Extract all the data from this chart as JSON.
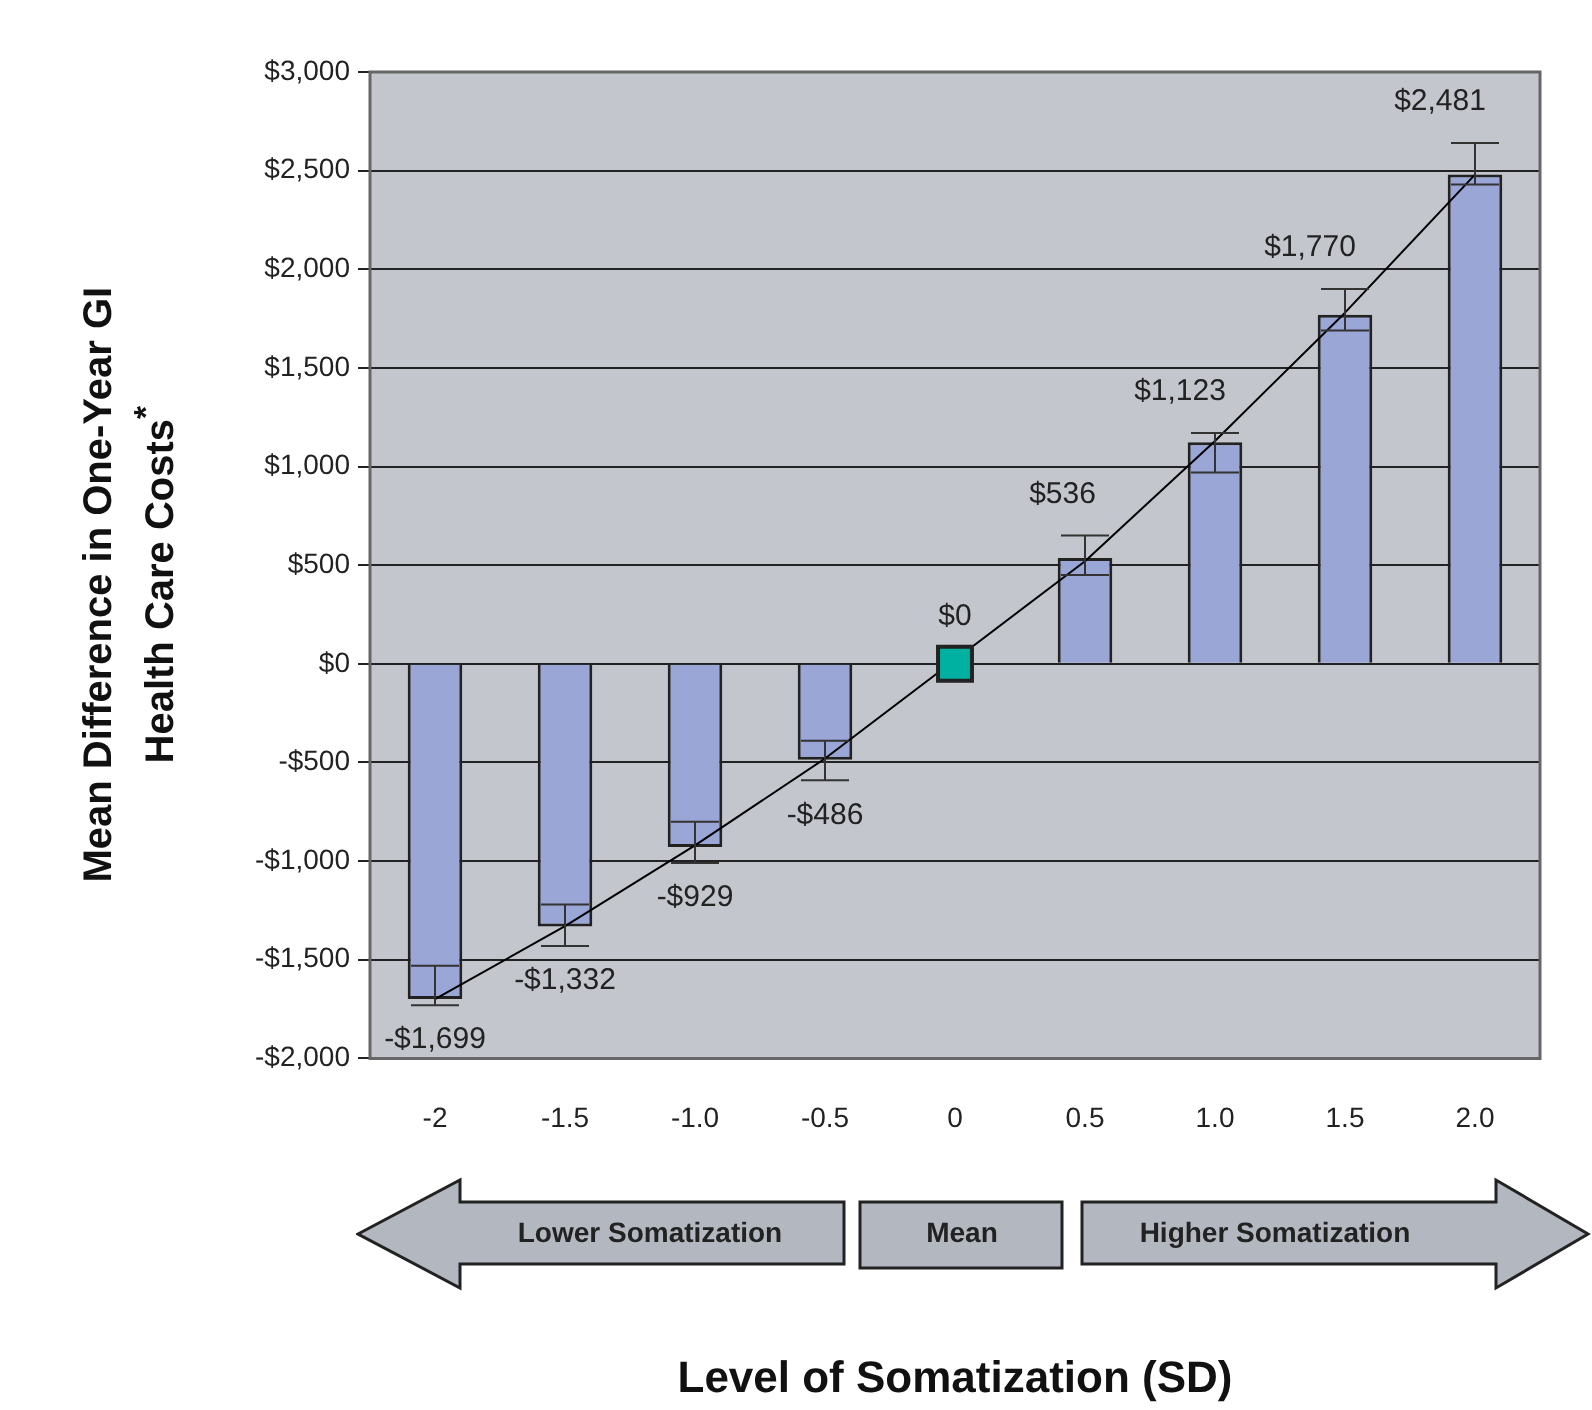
{
  "chart_data": {
    "type": "bar",
    "xlabel": "Level of Somatization (SD)",
    "ylabel": "Mean Difference in One-Year GI Health Care Costs$^{*}$",
    "categories": [
      "-2",
      "-1.5",
      "-1.0",
      "-0.5",
      "0",
      "0.5",
      "1.0",
      "1.5",
      "2.0"
    ],
    "series": [
      {
        "color": "#9aa6d6",
        "values": [
          -1699,
          -1332,
          -929,
          -486,
          null,
          536,
          1123,
          1770,
          2481
        ],
        "value_labels": [
          "-$1,699",
          "-$1,332",
          "-$929",
          "-$486",
          null,
          "$536",
          "$1,123",
          "$1,770",
          "$2,481"
        ],
        "errors": [
          [
            -1730,
            -1530
          ],
          [
            -1430,
            -1220
          ],
          [
            -1010,
            -800
          ],
          [
            -590,
            -390
          ],
          null,
          [
            450,
            650
          ],
          [
            970,
            1170
          ],
          [
            1690,
            1900
          ],
          [
            2430,
            2640
          ]
        ]
      },
      {
        "type": "scatter",
        "color": "#00b0a0",
        "marker": "square",
        "x": [
          "0"
        ],
        "values": [
          0
        ],
        "value_labels": [
          "$0"
        ]
      },
      {
        "type": "line",
        "color": "#000000",
        "values": [
          -1700,
          -1330,
          -920,
          -480,
          null,
          520,
          1130,
          1780,
          2480
        ]
      }
    ],
    "ylim": [
      -2000,
      3000
    ],
    "yticks": [
      {
        "value": -2000,
        "label": "-$2,000"
      },
      {
        "value": -1500,
        "label": "-$1,500"
      },
      {
        "value": -1000,
        "label": "-$1,000"
      },
      {
        "value": -500,
        "label": "-$500"
      },
      {
        "value": 0,
        "label": "$0"
      },
      {
        "value": 500,
        "label": "$500"
      },
      {
        "value": 1000,
        "label": "$1,000"
      },
      {
        "value": 1500,
        "label": "$1,500"
      },
      {
        "value": 2000,
        "label": "$2,000"
      },
      {
        "value": 2500,
        "label": "$2,500"
      },
      {
        "value": 3000,
        "label": "$3,000"
      }
    ],
    "grid": "y",
    "legend": false,
    "annotations": [
      "Lower Somatization",
      "Mean",
      "Higher Somatization"
    ]
  }
}
